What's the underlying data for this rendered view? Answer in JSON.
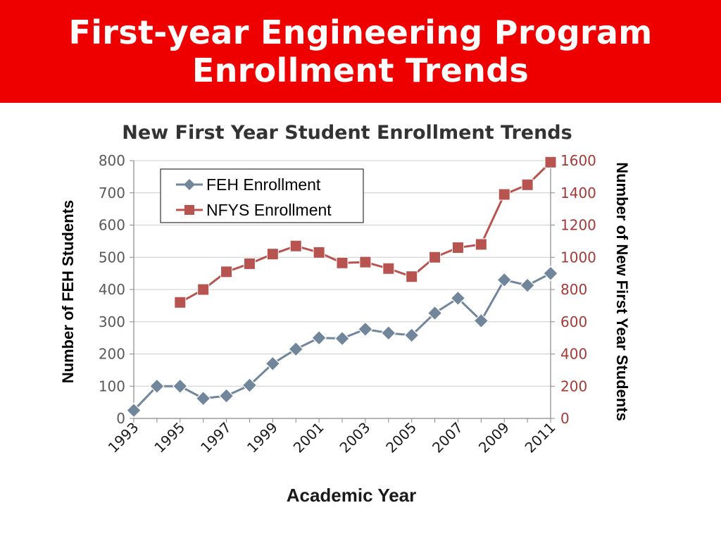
{
  "slide": {
    "title_line1": "First-year Engineering Program",
    "title_line2": "Enrollment Trends"
  },
  "colors": {
    "banner": "#ee0000",
    "feh": "#71869a",
    "nfys": "#b85450",
    "right_axis_text": "#a33a36"
  },
  "chart_data": {
    "type": "line",
    "title": "New First Year Student Enrollment Trends",
    "xlabel": "Academic Year",
    "ylabel_left": "Number of FEH Students",
    "ylabel_right": "Number of New First Year Students",
    "ylim_left": [
      0,
      800
    ],
    "ylim_right": [
      0,
      1600
    ],
    "yticks_left": [
      "0",
      "100",
      "200",
      "300",
      "400",
      "500",
      "600",
      "700",
      "800"
    ],
    "yticks_right": [
      "0",
      "200",
      "400",
      "600",
      "800",
      "1000",
      "1200",
      "1400",
      "1600"
    ],
    "xlim": [
      1993,
      2011
    ],
    "xticks": [
      "1993",
      "1995",
      "1997",
      "1999",
      "2001",
      "2003",
      "2005",
      "2007",
      "2009",
      "2011"
    ],
    "grid": "horizontal",
    "legend_position": "top-left",
    "series": [
      {
        "name": "FEH Enrollment",
        "axis": "left",
        "marker": "diamond",
        "x": [
          1993,
          1994,
          1995,
          1996,
          1997,
          1998,
          1999,
          2000,
          2001,
          2002,
          2003,
          2004,
          2005,
          2006,
          2007,
          2008,
          2009,
          2010,
          2011
        ],
        "y": [
          25,
          100,
          100,
          62,
          70,
          103,
          170,
          215,
          250,
          248,
          277,
          265,
          258,
          327,
          373,
          303,
          430,
          413,
          450
        ]
      },
      {
        "name": "NFYS Enrollment",
        "axis": "right",
        "marker": "square",
        "x": [
          1995,
          1996,
          1997,
          1998,
          1999,
          2000,
          2001,
          2002,
          2003,
          2004,
          2005,
          2006,
          2007,
          2008,
          2009,
          2010,
          2011
        ],
        "y": [
          720,
          800,
          910,
          960,
          1020,
          1070,
          1030,
          965,
          970,
          930,
          880,
          1000,
          1060,
          1080,
          1390,
          1450,
          1590
        ]
      }
    ]
  }
}
